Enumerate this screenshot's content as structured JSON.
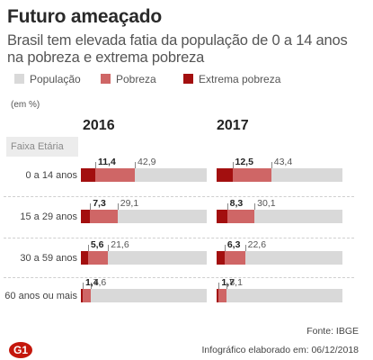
{
  "header": {
    "title": "Futuro ameaçado",
    "subtitle": "Brasil tem elevada fatia da população de 0 a 14 anos na pobreza e extrema pobreza"
  },
  "legend": {
    "items": [
      {
        "label": "População",
        "color": "#d9d9d9"
      },
      {
        "label": "Pobreza",
        "color": "#cf6666"
      },
      {
        "label": "Extrema pobreza",
        "color": "#a30f0f"
      }
    ]
  },
  "unit_label": "(em %)",
  "footer": {
    "source": "Fonte: IBGE",
    "credit": "Infográfico elaborado em: 06/12/2018",
    "logo": "G1"
  },
  "chart_data": {
    "type": "bar",
    "stacked": false,
    "orientation": "horizontal",
    "category_header": "Faixa Etária",
    "categories": [
      "0 a 14 anos",
      "15 a 29 anos",
      "30 a 59 anos",
      "60 anos ou mais"
    ],
    "panels": [
      {
        "title": "2016",
        "series": [
          {
            "name": "População",
            "values": [
              100,
              100,
              100,
              100
            ]
          },
          {
            "name": "Pobreza",
            "values": [
              42.9,
              29.1,
              21.6,
              7.6
            ]
          },
          {
            "name": "Extrema pobreza",
            "values": [
              11.4,
              7.3,
              5.6,
              1.4
            ]
          }
        ]
      },
      {
        "title": "2017",
        "series": [
          {
            "name": "População",
            "values": [
              100,
              100,
              100,
              100
            ]
          },
          {
            "name": "Pobreza",
            "values": [
              43.4,
              30.1,
              22.6,
              8.1
            ]
          },
          {
            "name": "Extrema pobreza",
            "values": [
              12.5,
              8.3,
              6.3,
              1.7
            ]
          }
        ]
      }
    ],
    "xlim": [
      0,
      100
    ]
  }
}
